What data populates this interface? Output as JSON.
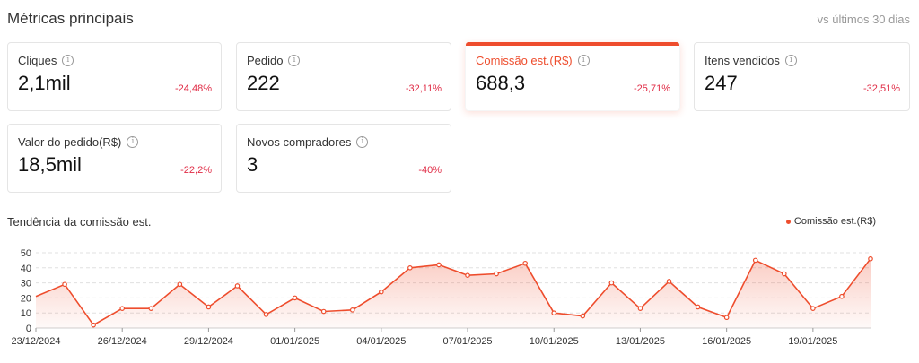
{
  "header": {
    "title": "Métricas principais",
    "subtitle": "vs últimos 30 dias"
  },
  "cards": [
    {
      "label": "Cliques",
      "value": "2,1mil",
      "delta": "-24,48%"
    },
    {
      "label": "Pedido",
      "value": "222",
      "delta": "-32,11%"
    },
    {
      "label": "Comissão est.(R$)",
      "value": "688,3",
      "delta": "-25,71%",
      "active": true
    },
    {
      "label": "Itens vendidos",
      "value": "247",
      "delta": "-32,51%"
    },
    {
      "label": "Valor do pedido(R$)",
      "value": "18,5mil",
      "delta": "-22,2%"
    },
    {
      "label": "Novos compradores",
      "value": "3",
      "delta": "-40%"
    }
  ],
  "chart_title": "Tendência da comissão est.",
  "colors": {
    "accent": "#ee4d2d",
    "negative": "#e02b45"
  },
  "chart_data": {
    "type": "area",
    "legend": "Comissão est.(R$)",
    "legend_position": "top-right",
    "ylim": [
      0,
      50
    ],
    "yticks": [
      0,
      10,
      20,
      30,
      40,
      50
    ],
    "grid": true,
    "x": [
      "23/12/2024",
      "24/12/2024",
      "25/12/2024",
      "26/12/2024",
      "27/12/2024",
      "28/12/2024",
      "29/12/2024",
      "30/12/2024",
      "31/12/2024",
      "01/01/2025",
      "02/01/2025",
      "03/01/2025",
      "04/01/2025",
      "05/01/2025",
      "06/01/2025",
      "07/01/2025",
      "08/01/2025",
      "09/01/2025",
      "10/01/2025",
      "11/01/2025",
      "12/01/2025",
      "13/01/2025",
      "14/01/2025",
      "15/01/2025",
      "16/01/2025",
      "17/01/2025",
      "18/01/2025",
      "19/01/2025",
      "20/01/2025",
      "21/01/2025"
    ],
    "xtick_labels": [
      "23/12/2024",
      "26/12/2024",
      "29/12/2024",
      "01/01/2025",
      "04/01/2025",
      "07/01/2025",
      "10/01/2025",
      "13/01/2025",
      "16/01/2025",
      "19/01/2025"
    ],
    "series": [
      {
        "name": "Comissão est.(R$)",
        "values": [
          21,
          29,
          2,
          13,
          13,
          29,
          14,
          28,
          9,
          20,
          11,
          12,
          24,
          40,
          42,
          35,
          36,
          43,
          10,
          8,
          30,
          13,
          31,
          14,
          7,
          45,
          36,
          13,
          21,
          46
        ]
      }
    ]
  }
}
